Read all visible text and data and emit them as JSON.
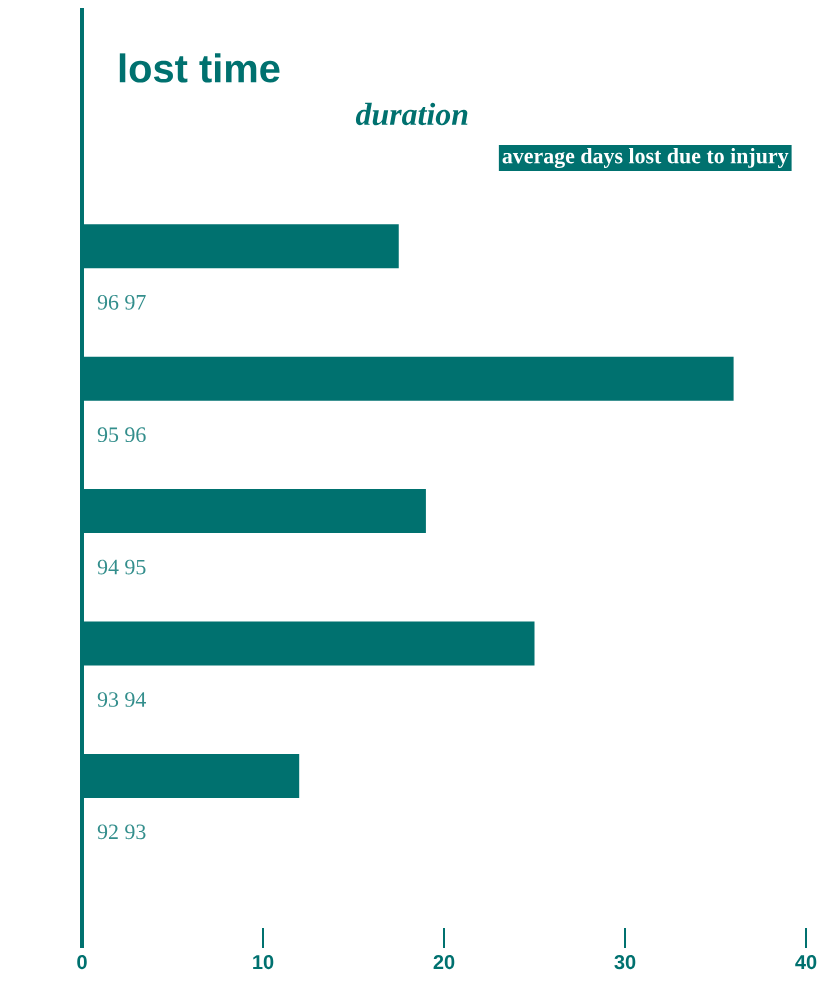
{
  "chart_data": {
    "type": "bar",
    "orientation": "horizontal",
    "title": "lost time",
    "subtitle": "duration",
    "xlabel": "average days lost due to injury",
    "categories": [
      "96 97",
      "95 96",
      "94 95",
      "93 94",
      "92 93"
    ],
    "values": [
      17.5,
      36,
      19,
      25,
      12
    ],
    "color": "#00716f",
    "xlim": [
      0,
      40
    ],
    "xticks": [
      0,
      10,
      20,
      30,
      40
    ]
  }
}
